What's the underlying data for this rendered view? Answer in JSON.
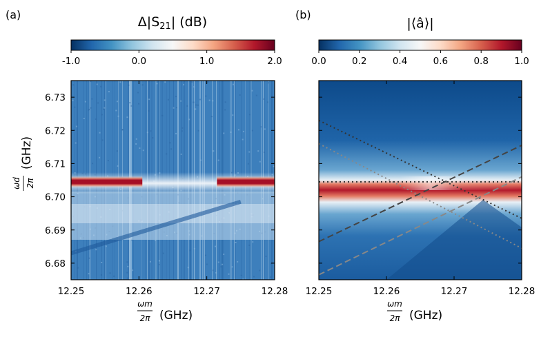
{
  "chart_data": [
    {
      "panel": "(a)",
      "type": "heatmap",
      "title": "Δ|S21| (dB)",
      "colorbar": {
        "label_text": "Δ|S",
        "label_sub": "21",
        "label_tail": "| (dB)",
        "range": [
          -1.0,
          2.0
        ],
        "ticks": [
          "-1.0",
          "0.0",
          "1.0",
          "2.0"
        ],
        "tick_values": [
          -1.0,
          0.0,
          1.0,
          2.0
        ],
        "colormap": "RdBu_r"
      },
      "xlabel": {
        "num": "ωm",
        "den": "2π",
        "unit": "(GHz)"
      },
      "ylabel": {
        "num": "ωd",
        "den": "2π",
        "unit": "(GHz)"
      },
      "xlim": [
        12.25,
        12.28
      ],
      "ylim": [
        6.675,
        6.735
      ],
      "xticks": [
        "12.25",
        "12.26",
        "12.27",
        "12.28"
      ],
      "xtick_values": [
        12.25,
        12.26,
        12.27,
        12.28
      ],
      "yticks": [
        "6.68",
        "6.69",
        "6.70",
        "6.71",
        "6.72",
        "6.73"
      ],
      "ytick_values": [
        6.68,
        6.69,
        6.7,
        6.71,
        6.72,
        6.73
      ],
      "features": {
        "resonance_band_center": 6.7045,
        "resonance_band_gap": [
          12.2605,
          12.2715
        ],
        "diagonal_dark_feature": {
          "from": [
            12.25,
            6.683
          ],
          "to": [
            12.275,
            6.6985
          ]
        }
      }
    },
    {
      "panel": "(b)",
      "type": "heatmap",
      "title": "|⟨â⟩|",
      "colorbar": {
        "label_text": "|⟨â⟩|",
        "range": [
          0.0,
          1.0
        ],
        "ticks": [
          "0.0",
          "0.2",
          "0.4",
          "0.6",
          "0.8",
          "1.0"
        ],
        "tick_values": [
          0.0,
          0.2,
          0.4,
          0.6,
          0.8,
          1.0
        ],
        "colormap": "RdBu_r"
      },
      "xlabel": {
        "num": "ωm",
        "den": "2π",
        "unit": "(GHz)"
      },
      "xlim": [
        12.25,
        12.28
      ],
      "ylim": [
        6.675,
        6.735
      ],
      "xticks": [
        "12.25",
        "12.26",
        "12.27",
        "12.28"
      ],
      "xtick_values": [
        12.25,
        12.26,
        12.27,
        12.28
      ],
      "overlay_lines": [
        {
          "style": "dotted",
          "color": "#333333",
          "from": [
            12.25,
            6.723
          ],
          "to": [
            12.28,
            6.6935
          ]
        },
        {
          "style": "dotted",
          "color": "#888888",
          "from": [
            12.25,
            6.716
          ],
          "to": [
            12.28,
            6.6845
          ]
        },
        {
          "style": "dotted",
          "color": "#333333",
          "from": [
            12.25,
            6.7045
          ],
          "to": [
            12.28,
            6.7045
          ]
        },
        {
          "style": "dashed",
          "color": "#444444",
          "from": [
            12.25,
            6.6865
          ],
          "to": [
            12.28,
            6.7155
          ]
        },
        {
          "style": "dashed",
          "color": "#888888",
          "from": [
            12.25,
            6.6765
          ],
          "to": [
            12.28,
            6.706
          ]
        }
      ]
    }
  ]
}
